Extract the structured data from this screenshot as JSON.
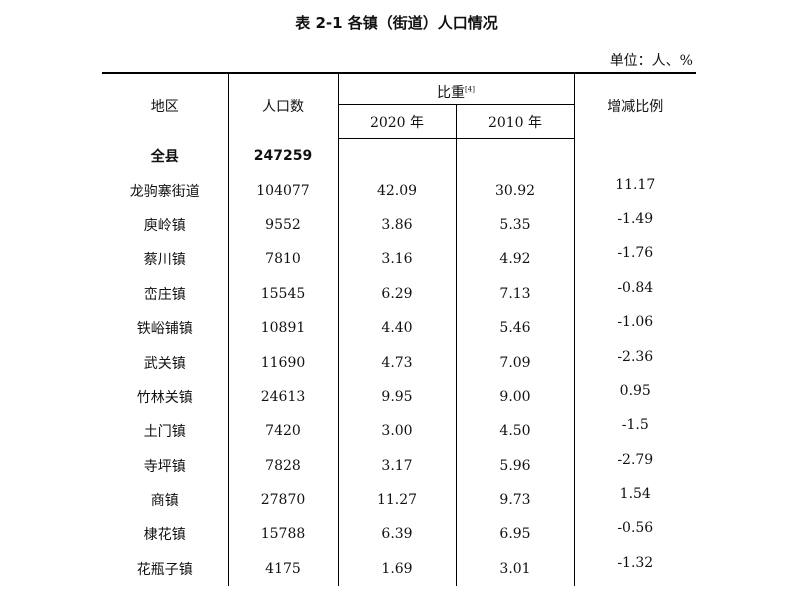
{
  "title": "表 2-1 各镇（街道）人口情况",
  "unit": "单位：人、%",
  "headers": {
    "region": "地区",
    "population": "人口数",
    "proportion": "比重",
    "proportion_note": "[4]",
    "year2020": "2020 年",
    "year2010": "2010 年",
    "change": "增减比例"
  },
  "rows": [
    {
      "region": "全县",
      "population": "247259",
      "p2020": "",
      "p2010": "",
      "change": ""
    },
    {
      "region": "龙驹寨街道",
      "population": "104077",
      "p2020": "42.09",
      "p2010": "30.92",
      "change": "11.17"
    },
    {
      "region": "庾岭镇",
      "population": "9552",
      "p2020": "3.86",
      "p2010": "5.35",
      "change": "-1.49"
    },
    {
      "region": "蔡川镇",
      "population": "7810",
      "p2020": "3.16",
      "p2010": "4.92",
      "change": "-1.76"
    },
    {
      "region": "峦庄镇",
      "population": "15545",
      "p2020": "6.29",
      "p2010": "7.13",
      "change": "-0.84"
    },
    {
      "region": "铁峪铺镇",
      "population": "10891",
      "p2020": "4.40",
      "p2010": "5.46",
      "change": "-1.06"
    },
    {
      "region": "武关镇",
      "population": "11690",
      "p2020": "4.73",
      "p2010": "7.09",
      "change": "-2.36"
    },
    {
      "region": "竹林关镇",
      "population": "24613",
      "p2020": "9.95",
      "p2010": "9.00",
      "change": "0.95"
    },
    {
      "region": "土门镇",
      "population": "7420",
      "p2020": "3.00",
      "p2010": "4.50",
      "change": "-1.5"
    },
    {
      "region": "寺坪镇",
      "population": "7828",
      "p2020": "3.17",
      "p2010": "5.96",
      "change": "-2.79"
    },
    {
      "region": "商镇",
      "population": "27870",
      "p2020": "11.27",
      "p2010": "9.73",
      "change": "1.54"
    },
    {
      "region": "棣花镇",
      "population": "15788",
      "p2020": "6.39",
      "p2010": "6.95",
      "change": "-0.56"
    },
    {
      "region": "花瓶子镇",
      "population": "4175",
      "p2020": "1.69",
      "p2010": "3.01",
      "change": "-1.32"
    }
  ]
}
